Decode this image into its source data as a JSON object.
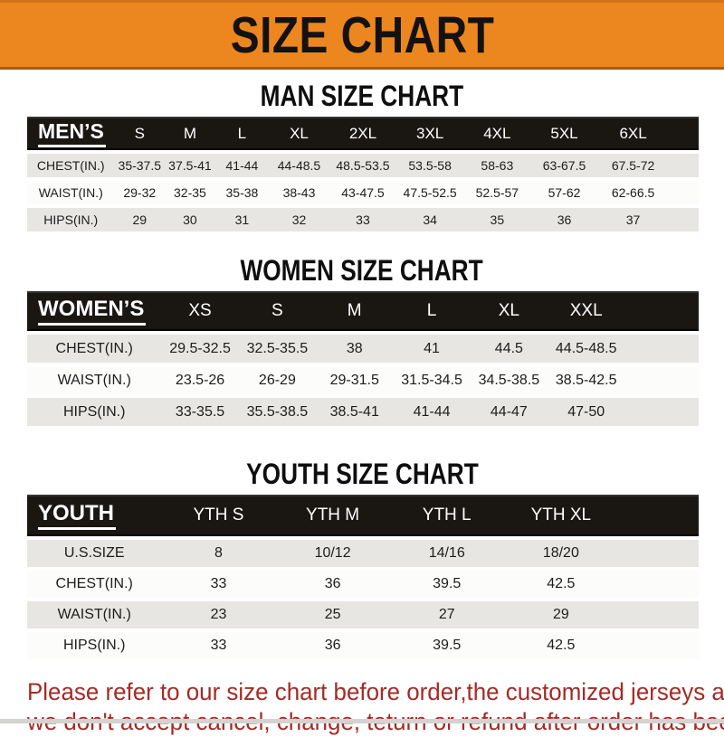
{
  "banner": {
    "title": "SIZE CHART",
    "bg_color": "#EC861E",
    "text_color": "#141210"
  },
  "colors": {
    "header_bar": "#1A1713",
    "row_gray": "#E7E6E3",
    "row_white": "#FCFCFB",
    "footer_red": "#A42B25"
  },
  "sections": [
    {
      "name": "men",
      "title": "MAN SIZE CHART",
      "header_label": "MEN’S",
      "columns": [
        "S",
        "M",
        "L",
        "XL",
        "2XL",
        "3XL",
        "4XL",
        "5XL",
        "6XL"
      ],
      "rows": [
        {
          "label": "CHEST(IN.)",
          "values": [
            "35-37.5",
            "37.5-41",
            "41-44",
            "44-48.5",
            "48.5-53.5",
            "53.5-58",
            "58-63",
            "63-67.5",
            "67.5-72"
          ]
        },
        {
          "label": "WAIST(IN.)",
          "values": [
            "29-32",
            "32-35",
            "35-38",
            "38-43",
            "43-47.5",
            "47.5-52.5",
            "52.5-57",
            "57-62",
            "62-66.5"
          ]
        },
        {
          "label": "HIPS(IN.)",
          "values": [
            "29",
            "30",
            "31",
            "32",
            "33",
            "34",
            "35",
            "36",
            "37"
          ]
        }
      ]
    },
    {
      "name": "women",
      "title": "WOMEN SIZE CHART",
      "header_label": "WOMEN’S",
      "columns": [
        "XS",
        "S",
        "M",
        "L",
        "XL",
        "XXL"
      ],
      "rows": [
        {
          "label": "CHEST(IN.)",
          "values": [
            "29.5-32.5",
            "32.5-35.5",
            "38",
            "41",
            "44.5",
            "44.5-48.5"
          ]
        },
        {
          "label": "WAIST(IN.)",
          "values": [
            "23.5-26",
            "26-29",
            "29-31.5",
            "31.5-34.5",
            "34.5-38.5",
            "38.5-42.5"
          ]
        },
        {
          "label": "HIPS(IN.)",
          "values": [
            "33-35.5",
            "35.5-38.5",
            "38.5-41",
            "41-44",
            "44-47",
            "47-50"
          ]
        }
      ]
    },
    {
      "name": "youth",
      "title": "YOUTH SIZE CHART",
      "header_label": "YOUTH",
      "columns": [
        "YTH S",
        "YTH M",
        "YTH L",
        "YTH XL"
      ],
      "rows": [
        {
          "label": "U.S.SIZE",
          "values": [
            "8",
            "10/12",
            "14/16",
            "18/20"
          ]
        },
        {
          "label": "CHEST(IN.)",
          "values": [
            "33",
            "36",
            "39.5",
            "42.5"
          ]
        },
        {
          "label": "WAIST(IN.)",
          "values": [
            "23",
            "25",
            "27",
            "29"
          ]
        },
        {
          "label": "HIPS(IN.)",
          "values": [
            "33",
            "36",
            "39.5",
            "42.5"
          ]
        }
      ]
    }
  ],
  "footer": {
    "line1": "Please refer to our size chart before order,the customized jerseys are special products,",
    "line2": "we don't accept cancel, change, teturn or refund after order has been placed!"
  }
}
